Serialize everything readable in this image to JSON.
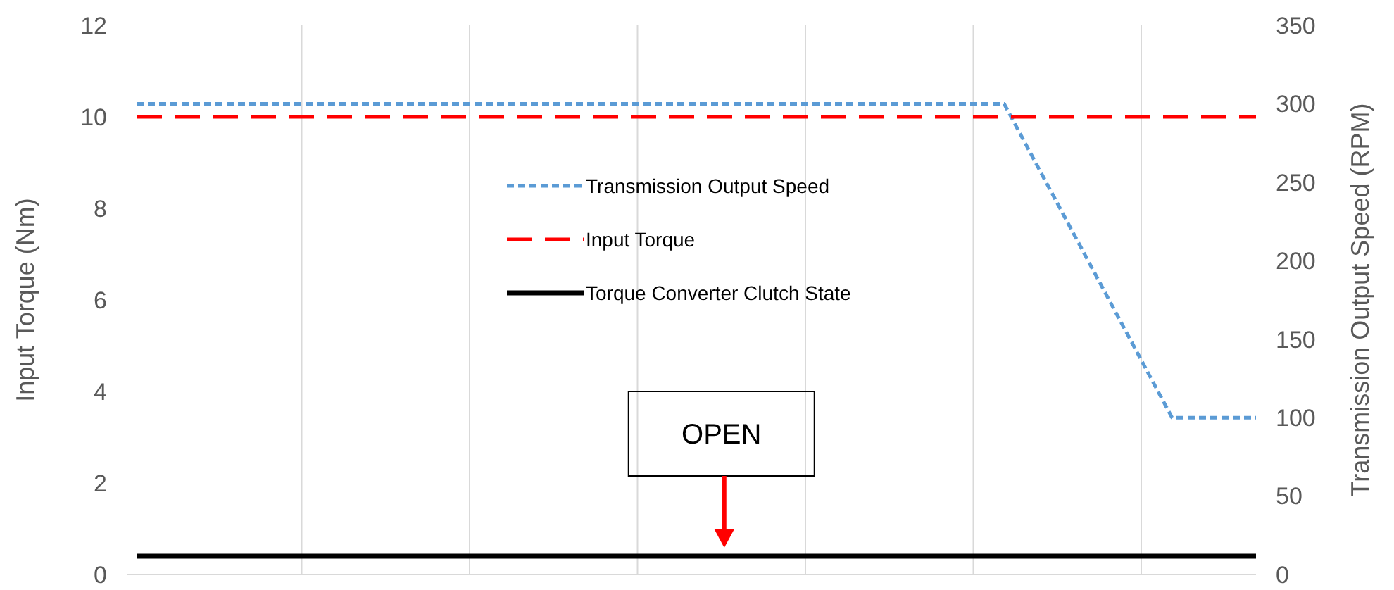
{
  "chart_data": {
    "type": "line",
    "ylabel": "Input Torque (Nm)",
    "y2label": "Transmission Output Speed (RPM)",
    "categories": [
      null,
      null,
      null,
      null,
      null,
      null,
      null,
      null,
      null,
      null,
      null,
      null,
      null,
      null,
      null,
      null,
      null,
      null,
      null,
      null,
      null,
      null,
      null,
      null,
      null,
      null,
      null,
      null,
      null,
      null,
      null,
      null,
      null,
      null,
      null,
      null,
      null,
      null,
      null,
      null,
      null
    ],
    "series": [
      {
        "name": "Transmission Output Speed",
        "color": "#5b9bd5",
        "axis": "y2",
        "line_style": "dotted",
        "values": [
          300,
          300,
          300,
          300,
          300,
          300,
          300,
          300,
          300,
          300,
          300,
          300,
          300,
          300,
          300,
          300,
          300,
          300,
          300,
          300,
          300,
          300,
          300,
          300,
          300,
          300,
          300,
          300,
          300,
          300,
          300,
          300,
          null,
          null,
          null,
          null,
          null,
          100,
          100,
          100,
          100
        ]
      },
      {
        "name": "Input Torque",
        "color": "#ff0000",
        "axis": "y",
        "line_style": "dashed",
        "values": [
          10,
          10,
          10,
          10,
          10,
          10,
          10,
          10,
          10,
          10,
          10,
          10,
          10,
          10,
          10,
          10,
          10,
          10,
          10,
          10,
          10,
          10,
          10,
          10,
          10,
          10,
          10,
          10,
          10,
          10,
          10,
          10,
          10,
          10,
          10,
          10,
          10,
          10,
          10,
          10,
          10
        ]
      },
      {
        "name": "Torque Converter Clutch State",
        "color": "#000000",
        "axis": "y",
        "line_style": "solid",
        "values": [
          0.4,
          0.4,
          0.4,
          0.4,
          0.4,
          0.4,
          0.4,
          0.4,
          0.4,
          0.4,
          0.4,
          0.4,
          0.4,
          0.4,
          0.4,
          0.4,
          0.4,
          0.4,
          0.4,
          0.4,
          0.4,
          0.4,
          0.4,
          0.4,
          0.4,
          0.4,
          0.4,
          0.4,
          0.4,
          0.4,
          0.4,
          0.4,
          0.4,
          0.4,
          0.4,
          0.4,
          0.4,
          0.4,
          0.4,
          0.4,
          0.4
        ]
      }
    ],
    "ylim": [
      0,
      12
    ],
    "yticks": [
      0,
      2,
      4,
      6,
      8,
      10,
      12
    ],
    "y2lim": [
      0,
      350
    ],
    "y2ticks": [
      0,
      50,
      100,
      150,
      200,
      250,
      300,
      350
    ],
    "grid": "x",
    "legend": "center",
    "annotations": [
      {
        "text": "OPEN"
      }
    ]
  }
}
